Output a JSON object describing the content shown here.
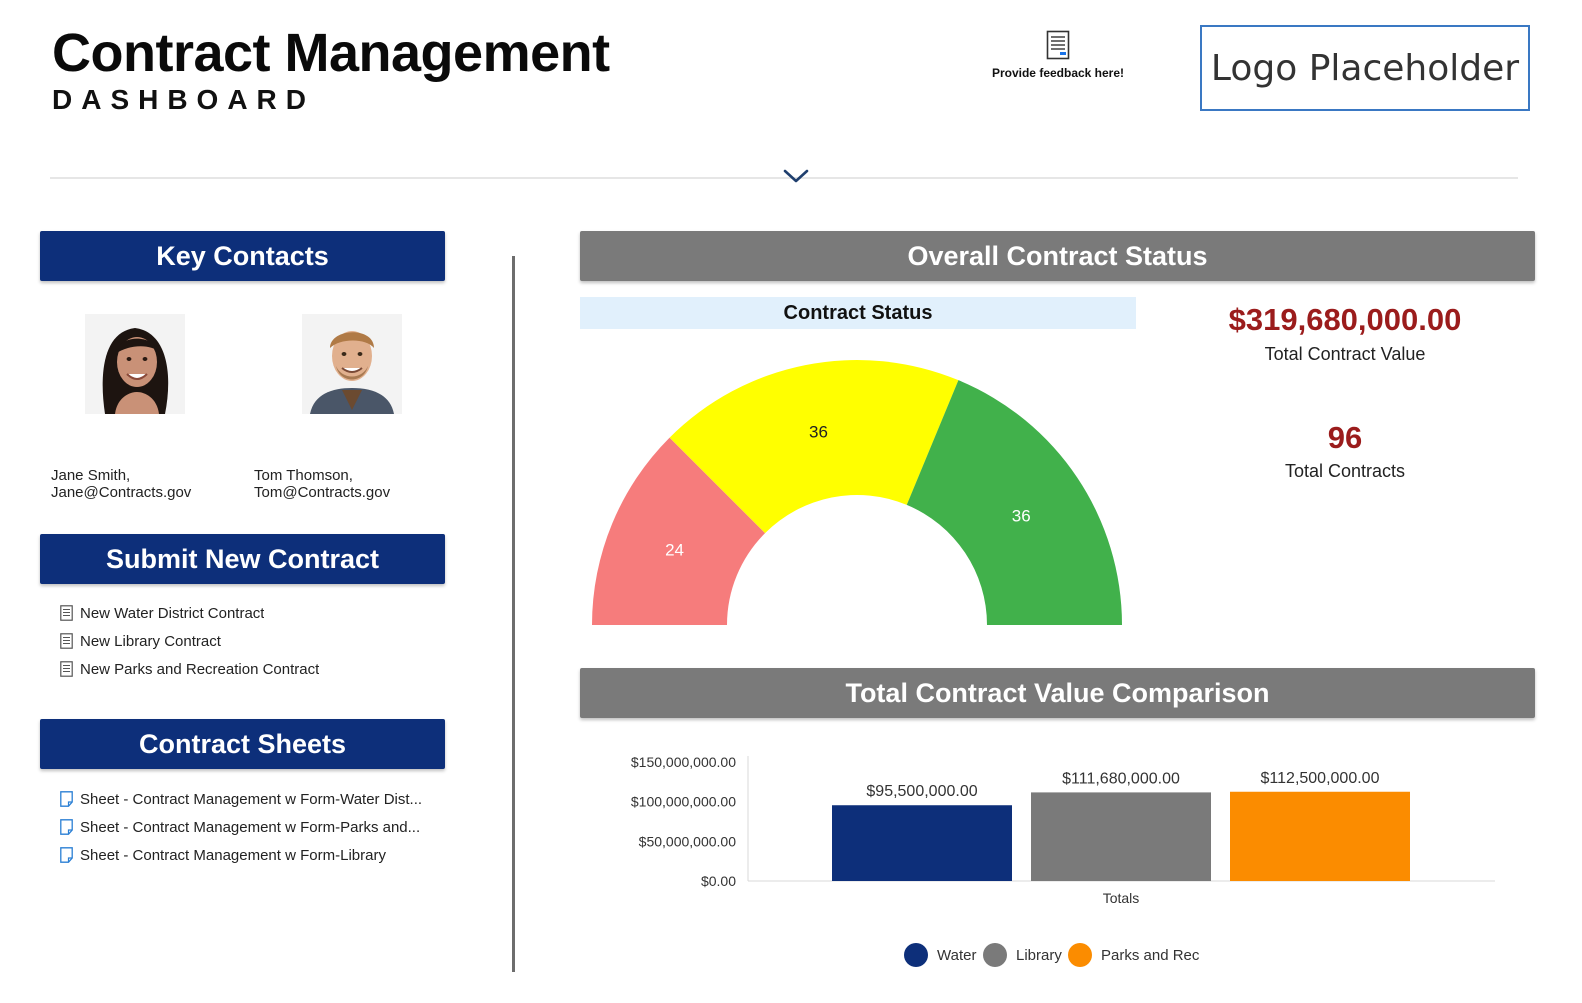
{
  "header": {
    "title": "Contract Management",
    "subtitle": "DASHBOARD",
    "feedback_label": "Provide feedback here!",
    "logo_text": "Logo Placeholder"
  },
  "key_contacts": {
    "heading": "Key Contacts",
    "contacts": [
      {
        "name": "Jane Smith,",
        "email": "Jane@Contracts.gov"
      },
      {
        "name": "Tom Thomson,",
        "email": "Tom@Contracts.gov"
      }
    ]
  },
  "submit_new_contract": {
    "heading": "Submit New Contract",
    "links": [
      "New Water District Contract",
      "New Library Contract",
      "New Parks and Recreation Contract"
    ]
  },
  "contract_sheets": {
    "heading": "Contract Sheets",
    "links": [
      "Sheet - Contract Management w Form-Water Dist...",
      "Sheet - Contract Management w Form-Parks and...",
      "Sheet - Contract Management w Form-Library"
    ]
  },
  "overall_status": {
    "heading": "Overall Contract Status",
    "chart_title": "Contract Status",
    "total_value": "$319,680,000.00",
    "total_value_label": "Total Contract Value",
    "total_contracts": "96",
    "total_contracts_label": "Total Contracts"
  },
  "value_comparison": {
    "heading": "Total Contract Value Comparison"
  },
  "colors": {
    "navy": "#0d2f7a",
    "gray": "#7a7a7a",
    "orange": "#fb8c00",
    "red_segment": "#f67c7c",
    "yellow_segment": "#ffff00",
    "green_segment": "#41b14b",
    "kpi_red": "#9b1c1c"
  },
  "chart_data": [
    {
      "type": "pie",
      "variant": "semi-donut gauge",
      "title": "Contract Status",
      "values": [
        24,
        36,
        36
      ],
      "colors": [
        "#f67c7c",
        "#ffff00",
        "#41b14b"
      ]
    },
    {
      "type": "bar",
      "categories": [
        "Totals"
      ],
      "xlabel": "Totals",
      "series": [
        {
          "name": "Water",
          "values": [
            95500000
          ],
          "label": "$95,500,000.00",
          "color": "#0d2f7a"
        },
        {
          "name": "Library",
          "values": [
            111680000
          ],
          "label": "$111,680,000.00",
          "color": "#7a7a7a"
        },
        {
          "name": "Parks and Rec",
          "values": [
            112500000
          ],
          "label": "$112,500,000.00",
          "color": "#fb8c00"
        }
      ],
      "ylim": [
        0,
        150000000
      ],
      "yticks": [
        0,
        50000000,
        100000000,
        150000000
      ],
      "ytick_labels": [
        "$0.00",
        "$50,000,000.00",
        "$100,000,000.00",
        "$150,000,000.00"
      ],
      "legend": "bottom"
    }
  ]
}
